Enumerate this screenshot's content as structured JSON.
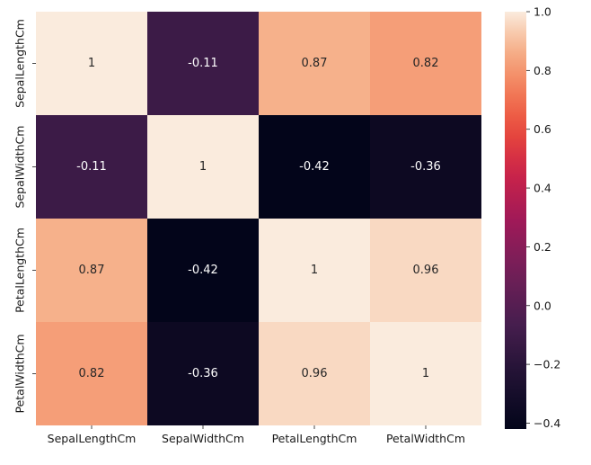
{
  "chart_data": {
    "type": "heatmap",
    "title": "",
    "xlabel": "",
    "ylabel": "",
    "x_categories": [
      "SepalLengthCm",
      "SepalWidthCm",
      "PetalLengthCm",
      "PetalWidthCm"
    ],
    "y_categories": [
      "SepalLengthCm",
      "SepalWidthCm",
      "PetalLengthCm",
      "PetalWidthCm"
    ],
    "values": [
      [
        1,
        -0.11,
        0.87,
        0.82
      ],
      [
        -0.11,
        1,
        -0.42,
        -0.36
      ],
      [
        0.87,
        -0.42,
        1,
        0.96
      ],
      [
        0.82,
        -0.36,
        0.96,
        1
      ]
    ],
    "annotations": [
      [
        "1",
        "-0.11",
        "0.87",
        "0.82"
      ],
      [
        "-0.11",
        "1",
        "-0.42",
        "-0.36"
      ],
      [
        "0.87",
        "-0.42",
        "1",
        "0.96"
      ],
      [
        "0.82",
        "-0.36",
        "0.96",
        "1"
      ]
    ],
    "colorbar": {
      "range": [
        -0.42,
        1
      ],
      "ticks": [
        -0.4,
        -0.2,
        0.0,
        0.2,
        0.4,
        0.6,
        0.8,
        1.0
      ],
      "tick_labels": [
        "−0.4",
        "−0.2",
        "0.0",
        "0.2",
        "0.4",
        "0.6",
        "0.8",
        "1.0"
      ],
      "colormap": "rocket"
    },
    "grid": false,
    "legend": "colorbar-right"
  }
}
